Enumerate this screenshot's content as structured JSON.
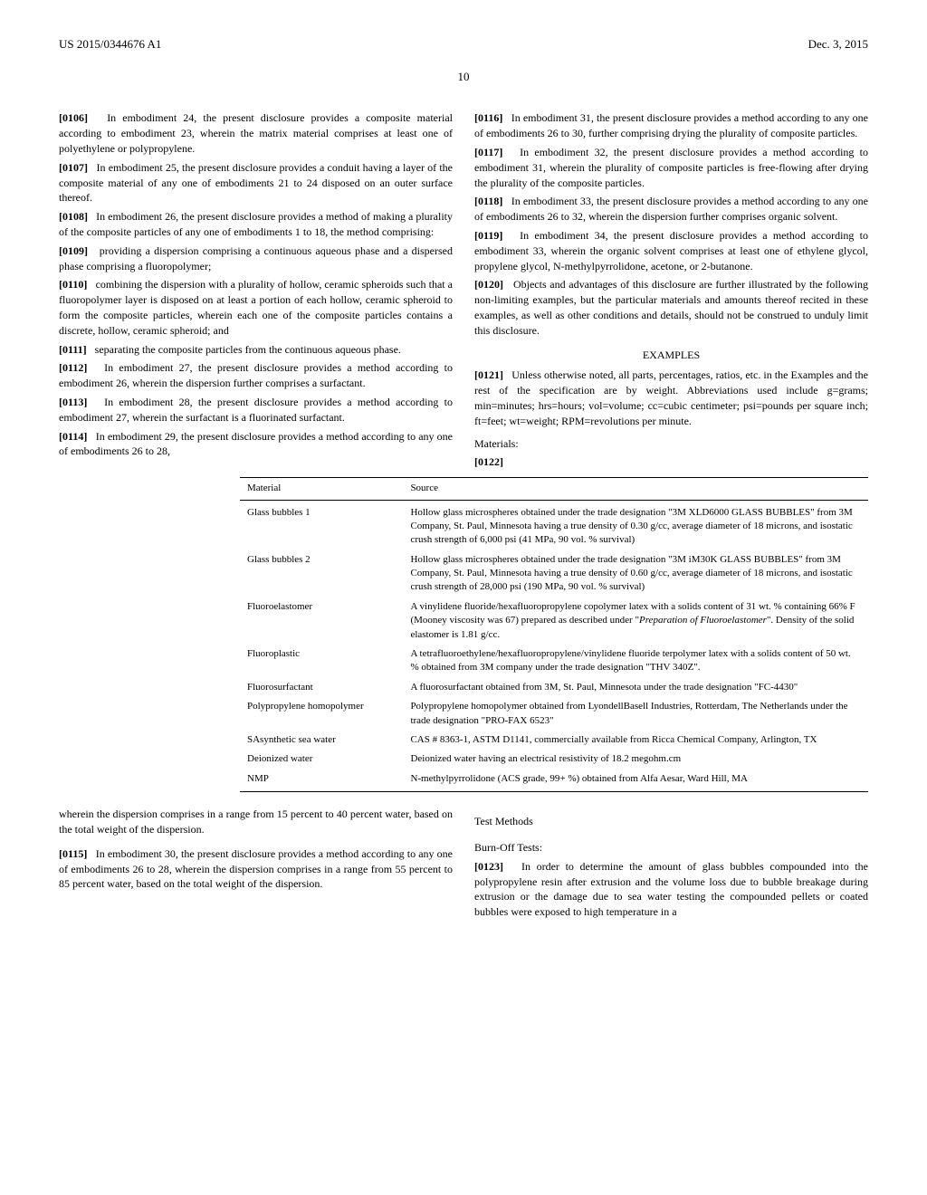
{
  "header": {
    "pub_number": "US 2015/0344676 A1",
    "date": "Dec. 3, 2015"
  },
  "page_number": "10",
  "left_col": {
    "p0106": "In embodiment 24, the present disclosure provides a composite material according to embodiment 23, wherein the matrix material comprises at least one of polyethylene or polypropylene.",
    "p0107": "In embodiment 25, the present disclosure provides a conduit having a layer of the composite material of any one of embodiments 21 to 24 disposed on an outer surface thereof.",
    "p0108": "In embodiment 26, the present disclosure provides a method of making a plurality of the composite particles of any one of embodiments 1 to 18, the method comprising:",
    "p0109": "providing a dispersion comprising a continuous aqueous phase and a dispersed phase comprising a fluoropolymer;",
    "p0110": "combining the dispersion with a plurality of hollow, ceramic spheroids such that a fluoropolymer layer is disposed on at least a portion of each hollow, ceramic spheroid to form the composite particles, wherein each one of the composite particles contains a discrete, hollow, ceramic spheroid; and",
    "p0111": "separating the composite particles from the continuous aqueous phase.",
    "p0112": "In embodiment 27, the present disclosure provides a method according to embodiment 26, wherein the dispersion further comprises a surfactant.",
    "p0113": "In embodiment 28, the present disclosure provides a method according to embodiment 27, wherein the surfactant is a fluorinated surfactant.",
    "p0114": "In embodiment 29, the present disclosure provides a method according to any one of embodiments 26 to 28,"
  },
  "right_col": {
    "p0116": "In embodiment 31, the present disclosure provides a method according to any one of embodiments 26 to 30, further comprising drying the plurality of composite particles.",
    "p0117": "In embodiment 32, the present disclosure provides a method according to embodiment 31, wherein the plurality of composite particles is free-flowing after drying the plurality of the composite particles.",
    "p0118": "In embodiment 33, the present disclosure provides a method according to any one of embodiments 26 to 32, wherein the dispersion further comprises organic solvent.",
    "p0119": "In embodiment 34, the present disclosure provides a method according to embodiment 33, wherein the organic solvent comprises at least one of ethylene glycol, propylene glycol, N-methylpyrrolidone, acetone, or 2-butanone.",
    "p0120": "Objects and advantages of this disclosure are further illustrated by the following non-limiting examples, but the particular materials and amounts thereof recited in these examples, as well as other conditions and details, should not be construed to unduly limit this disclosure.",
    "examples_title": "EXAMPLES",
    "p0121": "Unless otherwise noted, all parts, percentages, ratios, etc. in the Examples and the rest of the specification are by weight. Abbreviations used include g=grams; min=minutes; hrs=hours; vol=volume; cc=cubic centimeter; psi=pounds per square inch; ft=feet; wt=weight; RPM=revolutions per minute.",
    "materials_label": "Materials:",
    "p0122_label": "[0122]"
  },
  "materials_table": {
    "columns": [
      "Material",
      "Source"
    ],
    "rows": [
      [
        "Glass bubbles 1",
        "Hollow glass microspheres obtained under the trade designation \"3M XLD6000 GLASS BUBBLES\" from 3M Company, St. Paul, Minnesota having a true density of 0.30 g/cc, average diameter of 18 microns, and isostatic crush strength of 6,000 psi (41 MPa, 90 vol. % survival)"
      ],
      [
        "Glass bubbles 2",
        "Hollow glass microspheres obtained under the trade designation \"3M iM30K GLASS BUBBLES\" from 3M Company, St. Paul, Minnesota having a true density of 0.60 g/cc, average diameter of 18 microns, and isostatic crush strength of 28,000 psi (190 MPa, 90 vol. % survival)"
      ],
      [
        "Fluoroelastomer",
        "A vinylidene fluoride/hexafluoropropylene copolymer latex with a solids content of 31 wt. % containing 66% F (Mooney viscosity was 67) prepared as described under \"Preparation of Fluoroelastomer\". Density of the solid elastomer is 1.81 g/cc."
      ],
      [
        "Fluoroplastic",
        "A tetrafluoroethylene/hexafluoropropylene/vinylidene fluoride terpolymer latex with a solids content of 50 wt. % obtained from 3M company under the trade designation \"THV 340Z\"."
      ],
      [
        "Fluorosurfactant",
        "A fluorosurfactant obtained from 3M, St. Paul, Minnesota under the trade designation \"FC-4430\""
      ],
      [
        "Polypropylene homopolymer",
        "Polypropylene homopolymer obtained from LyondellBasell Industries, Rotterdam, The Netherlands under the trade designation \"PRO-FAX 6523\""
      ],
      [
        "SAsynthetic sea water",
        "CAS # 8363-1, ASTM D1141, commercially available from Ricca Chemical Company, Arlington, TX"
      ],
      [
        "Deionized water",
        "Deionized water having an electrical resistivity of 18.2 megohm.cm"
      ],
      [
        "NMP",
        "N-methylpyrrolidone (ACS grade, 99+ %) obtained from Alfa Aesar, Ward Hill, MA"
      ]
    ],
    "col_widths": [
      "26%",
      "74%"
    ]
  },
  "bottom_left": {
    "p_dispersion": "wherein the dispersion comprises in a range from 15 percent to 40 percent water, based on the total weight of the dispersion.",
    "p0115": "In embodiment 30, the present disclosure provides a method according to any one of embodiments 26 to 28, wherein the dispersion comprises in a range from 55 percent to 85 percent water, based on the total weight of the dispersion."
  },
  "bottom_right": {
    "test_methods": "Test Methods",
    "burnoff_title": "Burn-Off Tests:",
    "p0123": "In order to determine the amount of glass bubbles compounded into the polypropylene resin after extrusion and the volume loss due to bubble breakage during extrusion or the damage due to sea water testing the compounded pellets or coated bubbles were exposed to high temperature in a"
  },
  "labels": {
    "n0106": "[0106]",
    "n0107": "[0107]",
    "n0108": "[0108]",
    "n0109": "[0109]",
    "n0110": "[0110]",
    "n0111": "[0111]",
    "n0112": "[0112]",
    "n0113": "[0113]",
    "n0114": "[0114]",
    "n0115": "[0115]",
    "n0116": "[0116]",
    "n0117": "[0117]",
    "n0118": "[0118]",
    "n0119": "[0119]",
    "n0120": "[0120]",
    "n0121": "[0121]",
    "n0123": "[0123]"
  }
}
